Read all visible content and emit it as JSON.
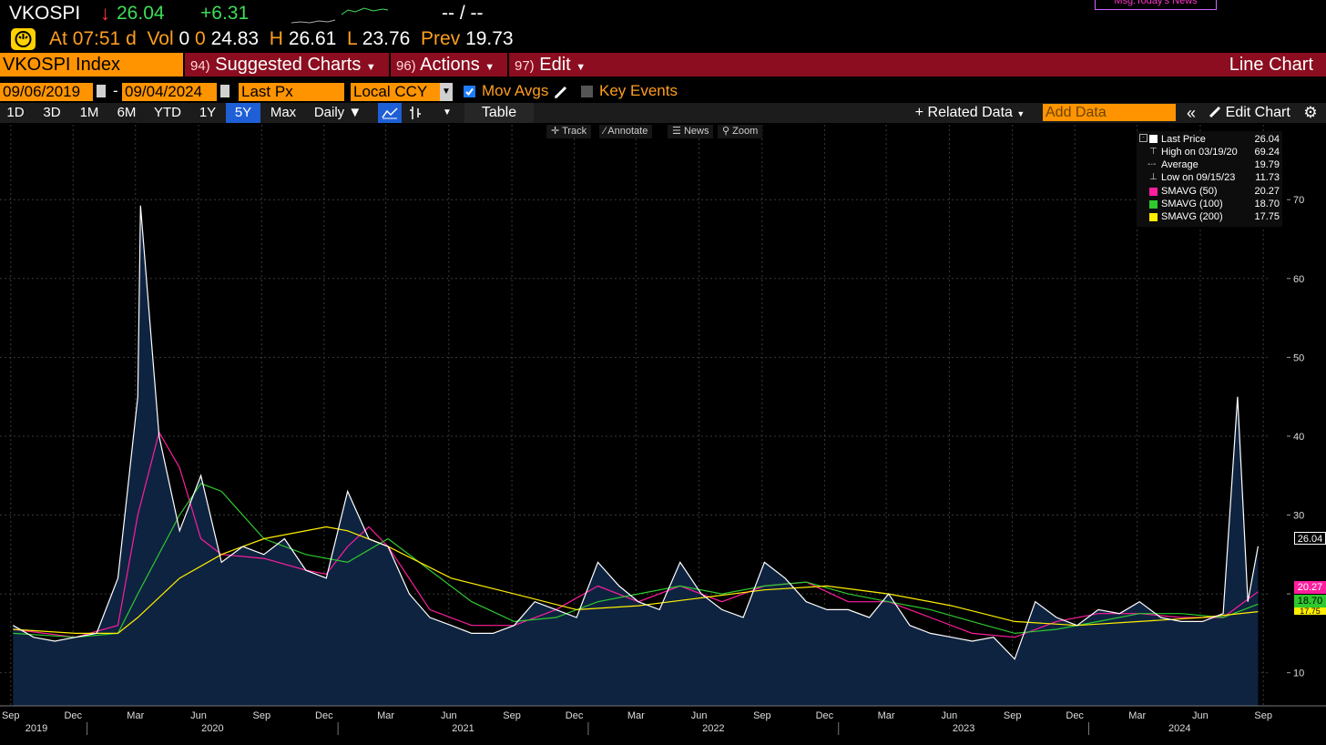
{
  "header": {
    "ticker": "VKOSPI",
    "direction_glyph": "↓",
    "last": "26.04",
    "change": "+6.31",
    "bid_ask": "-- / --",
    "msg": "Msg:Today's News",
    "at_label": "At",
    "time": "07:51",
    "time_suffix": "d",
    "vol_label": "Vol",
    "vol": "0",
    "open_label": "0",
    "open": "24.83",
    "high_label": "H",
    "high": "26.61",
    "low_label": "L",
    "low": "23.76",
    "prev_label": "Prev",
    "prev": "19.73"
  },
  "menubar": {
    "security": "VKOSPI Index",
    "suggested_num": "94)",
    "suggested": "Suggested Charts",
    "actions_num": "96)",
    "actions": "Actions",
    "edit_num": "97)",
    "edit": "Edit",
    "chart_type": "Line Chart"
  },
  "controls": {
    "start_date": "09/06/2019",
    "end_date": "09/04/2024",
    "dash": "-",
    "field": "Last Px",
    "currency": "Local CCY",
    "mov_avgs": "Mov Avgs",
    "key_events": "Key Events"
  },
  "toolbar": {
    "ranges": [
      "1D",
      "3D",
      "1M",
      "6M",
      "YTD",
      "1Y",
      "5Y",
      "Max"
    ],
    "selected_range": "5Y",
    "frequency": "Daily",
    "table": "Table",
    "related_data": "Related Data",
    "add_data_placeholder": "Add Data",
    "edit_chart": "Edit Chart"
  },
  "chart_tools": [
    "Track",
    "Annotate",
    "News",
    "Zoom"
  ],
  "legend": [
    {
      "label": "Last Price",
      "value": "26.04",
      "color": "#ffffff"
    },
    {
      "label": "High on 03/19/20",
      "value": "69.24",
      "color": "#ffffff"
    },
    {
      "label": "Average",
      "value": "19.79",
      "color": "#ffffff"
    },
    {
      "label": "Low on 09/15/23",
      "value": "11.73",
      "color": "#ffffff"
    },
    {
      "label": "SMAVG (50)",
      "value": "20.27",
      "color": "#ff1e9e"
    },
    {
      "label": "SMAVG (100)",
      "value": "18.70",
      "color": "#2ec92e"
    },
    {
      "label": "SMAVG (200)",
      "value": "17.75",
      "color": "#ffee00"
    }
  ],
  "chart_data": {
    "type": "line",
    "title": "VKOSPI Index",
    "y_ticks": [
      10,
      20,
      30,
      40,
      50,
      60,
      70
    ],
    "y_tick_labels": [
      "10",
      "",
      "30",
      "40",
      "50",
      "60",
      "70"
    ],
    "ylim": [
      5.8,
      79.5
    ],
    "x_month_labels": [
      "Sep",
      "Dec",
      "Mar",
      "Jun",
      "Sep",
      "Dec",
      "Mar",
      "Jun",
      "Sep",
      "Dec",
      "Mar",
      "Jun",
      "Sep",
      "Dec",
      "Mar",
      "Jun",
      "Sep",
      "Dec",
      "Mar",
      "Jun",
      "Sep"
    ],
    "x_year_labels": [
      "2019",
      "2020",
      "2021",
      "2022",
      "2023",
      "2024"
    ],
    "value_tags": [
      {
        "value": "26.04",
        "color": "#ffffff"
      },
      {
        "value": "20.27",
        "color": "#ff1e9e"
      },
      {
        "value": "18.70",
        "color": "#2ec92e"
      },
      {
        "value": "17.75",
        "color": "#ffee00"
      }
    ],
    "series": [
      {
        "name": "Last Price",
        "color": "#ffffff",
        "x": [
          "2019-09",
          "2019-10",
          "2019-11",
          "2019-12",
          "2020-01",
          "2020-02",
          "2020-03",
          "2020-03-19",
          "2020-04",
          "2020-05",
          "2020-06",
          "2020-07",
          "2020-08",
          "2020-09",
          "2020-10",
          "2020-11",
          "2020-12",
          "2021-01",
          "2021-02",
          "2021-03",
          "2021-04",
          "2021-05",
          "2021-06",
          "2021-07",
          "2021-08",
          "2021-09",
          "2021-10",
          "2021-11",
          "2021-12",
          "2022-01",
          "2022-02",
          "2022-03",
          "2022-04",
          "2022-05",
          "2022-06",
          "2022-07",
          "2022-08",
          "2022-09",
          "2022-10",
          "2022-11",
          "2022-12",
          "2023-01",
          "2023-02",
          "2023-03",
          "2023-04",
          "2023-05",
          "2023-06",
          "2023-07",
          "2023-08",
          "2023-09-15",
          "2023-10",
          "2023-11",
          "2023-12",
          "2024-01",
          "2024-02",
          "2024-03",
          "2024-04",
          "2024-05",
          "2024-06",
          "2024-07",
          "2024-08-05",
          "2024-08-20",
          "2024-09-04"
        ],
        "y": [
          16.0,
          14.5,
          14.0,
          14.5,
          15.0,
          22.0,
          45.0,
          69.24,
          40.0,
          28.0,
          35.0,
          24.0,
          26.0,
          25.0,
          27.0,
          23.0,
          22.0,
          33.0,
          27.0,
          26.0,
          20.0,
          17.0,
          16.0,
          15.0,
          15.0,
          16.0,
          19.0,
          18.0,
          17.0,
          24.0,
          21.0,
          19.0,
          18.0,
          24.0,
          20.0,
          18.0,
          17.0,
          24.0,
          22.0,
          19.0,
          18.0,
          18.0,
          17.0,
          20.0,
          16.0,
          15.0,
          14.5,
          14.0,
          14.5,
          11.73,
          19.0,
          17.0,
          16.0,
          18.0,
          17.5,
          19.0,
          17.0,
          16.5,
          16.5,
          17.5,
          45.0,
          19.0,
          26.04
        ]
      },
      {
        "name": "SMAVG (50)",
        "color": "#ff1e9e",
        "x": [
          "2019-09",
          "2019-12",
          "2020-02",
          "2020-03",
          "2020-04",
          "2020-05",
          "2020-06",
          "2020-07",
          "2020-09",
          "2020-11",
          "2020-12",
          "2021-01",
          "2021-02",
          "2021-03",
          "2021-05",
          "2021-07",
          "2021-09",
          "2021-11",
          "2022-01",
          "2022-03",
          "2022-05",
          "2022-07",
          "2022-09",
          "2022-11",
          "2023-01",
          "2023-03",
          "2023-05",
          "2023-07",
          "2023-09",
          "2023-11",
          "2024-01",
          "2024-03",
          "2024-05",
          "2024-07",
          "2024-09-04"
        ],
        "y": [
          15.5,
          14.5,
          16.0,
          30.0,
          40.5,
          36.0,
          27.0,
          25.0,
          24.5,
          23.0,
          22.5,
          26.0,
          28.5,
          26.0,
          18.0,
          16.0,
          16.0,
          18.0,
          21.0,
          19.0,
          21.0,
          19.0,
          21.0,
          21.5,
          19.0,
          19.0,
          17.0,
          15.0,
          14.5,
          16.5,
          17.5,
          17.5,
          17.0,
          17.0,
          20.27
        ]
      },
      {
        "name": "SMAVG (100)",
        "color": "#2ec92e",
        "x": [
          "2019-09",
          "2019-12",
          "2020-02",
          "2020-03",
          "2020-05",
          "2020-06",
          "2020-07",
          "2020-09",
          "2020-11",
          "2021-01",
          "2021-03",
          "2021-05",
          "2021-07",
          "2021-09",
          "2021-11",
          "2022-01",
          "2022-03",
          "2022-05",
          "2022-07",
          "2022-09",
          "2022-11",
          "2023-01",
          "2023-03",
          "2023-05",
          "2023-07",
          "2023-09",
          "2023-11",
          "2024-01",
          "2024-03",
          "2024-05",
          "2024-07",
          "2024-09-04"
        ],
        "y": [
          15.0,
          14.5,
          15.0,
          20.0,
          30.0,
          34.0,
          33.0,
          27.0,
          25.0,
          24.0,
          27.0,
          23.0,
          19.0,
          16.5,
          17.0,
          19.0,
          20.0,
          21.0,
          20.0,
          21.0,
          21.5,
          20.0,
          19.0,
          18.0,
          16.5,
          15.0,
          15.5,
          16.5,
          17.5,
          17.5,
          17.0,
          18.7
        ]
      },
      {
        "name": "SMAVG (200)",
        "color": "#ffee00",
        "x": [
          "2019-09",
          "2019-12",
          "2020-02",
          "2020-03",
          "2020-05",
          "2020-07",
          "2020-09",
          "2020-12",
          "2021-01",
          "2021-03",
          "2021-06",
          "2021-09",
          "2021-12",
          "2022-03",
          "2022-06",
          "2022-09",
          "2022-12",
          "2023-03",
          "2023-06",
          "2023-09",
          "2023-12",
          "2024-03",
          "2024-06",
          "2024-09-04"
        ],
        "y": [
          15.5,
          15.0,
          15.0,
          17.0,
          22.0,
          25.0,
          27.0,
          28.5,
          28.0,
          26.0,
          22.0,
          20.0,
          18.0,
          18.5,
          19.5,
          20.5,
          21.0,
          20.0,
          18.5,
          16.5,
          16.0,
          16.5,
          17.0,
          17.75
        ]
      }
    ]
  }
}
